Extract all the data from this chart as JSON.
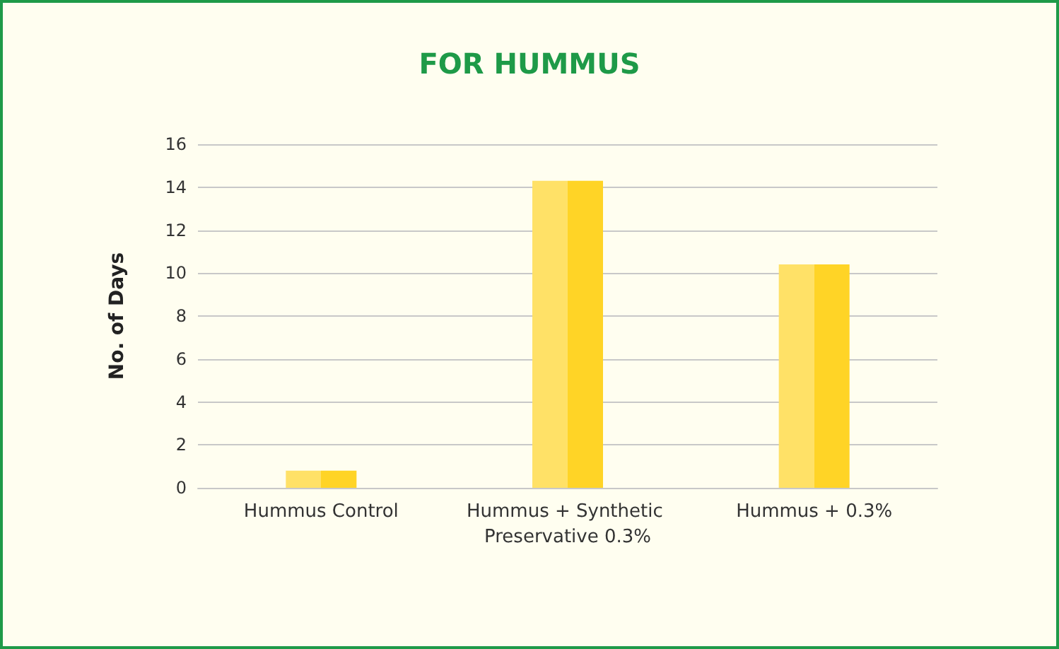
{
  "chart_data": {
    "type": "bar",
    "title": "FOR HUMMUS",
    "ylabel": "No. of Days",
    "categories": [
      "Hummus Control",
      "Hummus + Synthetic Preservative 0.3%",
      "Hummus + 0.3%"
    ],
    "values": [
      0.8,
      14.3,
      10.4
    ],
    "color": "#ffd426",
    "ylim": [
      0,
      16
    ],
    "yticks": [
      0,
      2,
      4,
      6,
      8,
      10,
      12,
      14,
      16
    ],
    "grid": "y"
  }
}
